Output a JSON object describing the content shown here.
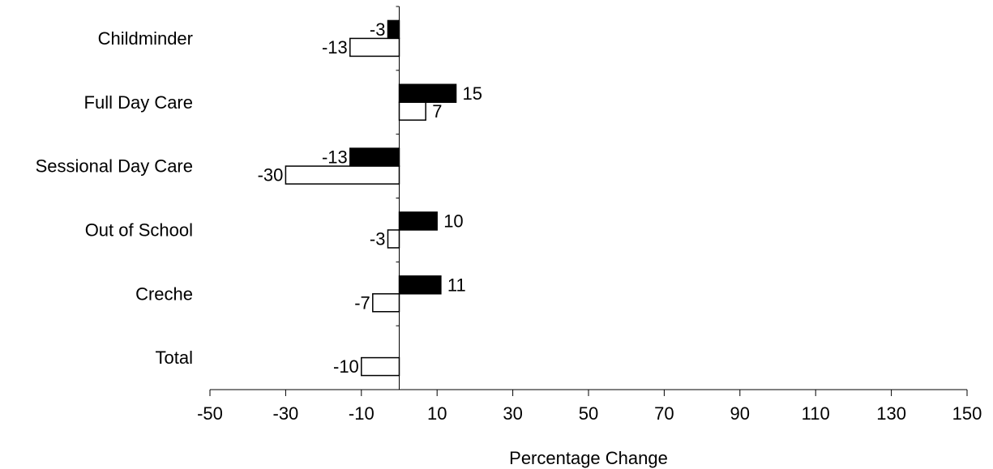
{
  "chart_data": {
    "type": "bar",
    "orientation": "horizontal",
    "categories": [
      "Childminder",
      "Full Day Care",
      "Sessional Day Care",
      "Out of School",
      "Creche",
      "Total"
    ],
    "series": [
      {
        "fill": "#000000",
        "values": [
          -3,
          15,
          -13,
          10,
          11,
          null
        ]
      },
      {
        "fill": "#ffffff",
        "values": [
          -13,
          7,
          -30,
          -3,
          -7,
          -10
        ]
      }
    ],
    "data_labels": [
      [
        "-3",
        "15",
        "-13",
        "10",
        "11",
        null
      ],
      [
        "-13",
        "7",
        "-30",
        "-3",
        "-7",
        "-10"
      ]
    ],
    "xlabel": "Percentage Change",
    "xlim": [
      -50,
      150
    ],
    "xticks": [
      -50,
      -30,
      -10,
      10,
      30,
      50,
      70,
      90,
      110,
      130,
      150
    ],
    "xtick_labels": [
      "-50",
      "-30",
      "-10",
      "10",
      "30",
      "50",
      "70",
      "90",
      "110",
      "130",
      "150"
    ],
    "grid": false,
    "legend": "none"
  }
}
